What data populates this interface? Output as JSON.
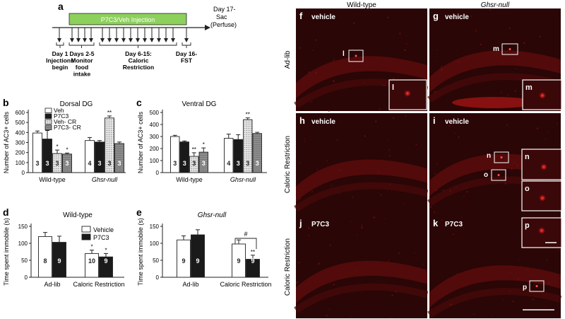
{
  "panel_a": {
    "letter": "a",
    "bar_label": "P7C3/Veh Injection",
    "day17": "Day 17-",
    "sac": "Sac",
    "perfuse": "(Perfuse)",
    "timeline_labels": [
      [
        "Day 1",
        "Injections",
        "begin"
      ],
      [
        "Days 2-5",
        "Monitor",
        "food",
        "intake"
      ],
      [
        "Day 6-15:",
        "Caloric",
        "Restriction"
      ],
      [
        "Day 16-",
        "FST"
      ]
    ]
  },
  "panel_b": {
    "letter": "b",
    "title": "Dorsal DG",
    "ylabel": "Number of AC3+ cells",
    "yticks": [
      "0",
      "100",
      "200",
      "300",
      "400",
      "500",
      "600"
    ],
    "groups": [
      "Wild-type",
      "Ghsr-null"
    ],
    "legend": [
      "Veh",
      "P7C3",
      "Veh- CR",
      "P7C3- CR"
    ]
  },
  "panel_c": {
    "letter": "c",
    "title": "Ventral DG",
    "ylabel": "Number of AC3+ cells",
    "yticks": [
      "0",
      "100",
      "200",
      "300",
      "400",
      "500"
    ],
    "groups": [
      "Wild-type",
      "Ghsr-null"
    ]
  },
  "panel_d": {
    "letter": "d",
    "title": "Wild-type",
    "ylabel": "Time spent immobile (s)",
    "yticks": [
      "0",
      "50",
      "100",
      "150"
    ],
    "groups": [
      "Ad-lib",
      "Caloric Restriction"
    ],
    "legend": [
      "Vehicle",
      "P7C3"
    ]
  },
  "panel_e": {
    "letter": "e",
    "title": "Ghsr-null",
    "ylabel": "Time spent immobile (s)",
    "yticks": [
      "0",
      "50",
      "100",
      "150"
    ],
    "groups": [
      "Ad-lib",
      "Caloric Restriction"
    ]
  },
  "micro": {
    "col_headers": [
      "Wild-type",
      "Ghsr-null"
    ],
    "row_labels": [
      "Ad-lib",
      "Caloric Restriction",
      "Caloric Restriction"
    ],
    "tiles": [
      {
        "letter": "f",
        "label": "vehicle"
      },
      {
        "letter": "g",
        "label": "vehicle"
      },
      {
        "letter": "h",
        "label": "vehicle"
      },
      {
        "letter": "i",
        "label": "vehicle"
      },
      {
        "letter": "j",
        "label": "P7C3"
      },
      {
        "letter": "k",
        "label": "P7C3"
      }
    ],
    "box_labels": [
      "l",
      "l",
      "m",
      "m",
      "n",
      "o",
      "n",
      "o",
      "p",
      "p"
    ]
  },
  "chart_data": [
    {
      "type": "bar",
      "title": "Dorsal DG",
      "ylabel": "Number of AC3+ cells",
      "ylim": [
        0,
        600
      ],
      "categories": [
        "Wild-type",
        "Ghsr-null"
      ],
      "series": [
        {
          "name": "Veh",
          "values": [
            395,
            320
          ],
          "errors": [
            20,
            30
          ],
          "n": [
            3,
            4
          ],
          "sig": [
            "",
            ""
          ]
        },
        {
          "name": "P7C3",
          "values": [
            335,
            305
          ],
          "errors": [
            85,
            15
          ],
          "n": [
            3,
            3
          ],
          "sig": [
            "",
            ""
          ]
        },
        {
          "name": "Veh- CR",
          "values": [
            190,
            545
          ],
          "errors": [
            35,
            20
          ],
          "n": [
            3,
            3
          ],
          "sig": [
            "*",
            "**"
          ]
        },
        {
          "name": "P7C3- CR",
          "values": [
            185,
            290
          ],
          "errors": [
            10,
            15
          ],
          "n": [
            3,
            3
          ],
          "sig": [
            "*",
            ""
          ]
        }
      ]
    },
    {
      "type": "bar",
      "title": "Ventral DG",
      "ylabel": "Number of AC3+ cells",
      "ylim": [
        0,
        500
      ],
      "categories": [
        "Wild-type",
        "Ghsr-null"
      ],
      "series": [
        {
          "name": "Veh",
          "values": [
            300,
            285
          ],
          "errors": [
            10,
            35
          ],
          "n": [
            3,
            4
          ],
          "sig": [
            "",
            ""
          ]
        },
        {
          "name": "P7C3",
          "values": [
            255,
            275
          ],
          "errors": [
            8,
            40
          ],
          "n": [
            3,
            3
          ],
          "sig": [
            "",
            ""
          ]
        },
        {
          "name": "Veh- CR",
          "values": [
            135,
            440
          ],
          "errors": [
            30,
            15
          ],
          "n": [
            3,
            3
          ],
          "sig": [
            "**",
            "**"
          ]
        },
        {
          "name": "P7C3- CR",
          "values": [
            170,
            325
          ],
          "errors": [
            35,
            10
          ],
          "n": [
            3,
            3
          ],
          "sig": [
            "*",
            ""
          ]
        }
      ]
    },
    {
      "type": "bar",
      "title": "Wild-type",
      "ylabel": "Time spent immobile (s)",
      "ylim": [
        0,
        150
      ],
      "categories": [
        "Ad-lib",
        "Caloric Restriction"
      ],
      "series": [
        {
          "name": "Vehicle",
          "values": [
            120,
            70
          ],
          "errors": [
            12,
            10
          ],
          "n": [
            8,
            10
          ],
          "sig": [
            "",
            "*"
          ]
        },
        {
          "name": "P7C3",
          "values": [
            103,
            60
          ],
          "errors": [
            18,
            10
          ],
          "n": [
            9,
            9
          ],
          "sig": [
            "",
            "*"
          ]
        }
      ]
    },
    {
      "type": "bar",
      "title": "Ghsr-null",
      "ylabel": "Time spent immobile (s)",
      "ylim": [
        0,
        150
      ],
      "categories": [
        "Ad-lib",
        "Caloric Restriction"
      ],
      "series": [
        {
          "name": "Vehicle",
          "values": [
            110,
            98
          ],
          "errors": [
            12,
            12
          ],
          "n": [
            9,
            9
          ],
          "sig": [
            "",
            ""
          ]
        },
        {
          "name": "P7C3",
          "values": [
            125,
            53
          ],
          "errors": [
            15,
            12
          ],
          "n": [
            9,
            9
          ],
          "sig": [
            "",
            "**"
          ]
        }
      ],
      "annotation": "#"
    }
  ]
}
